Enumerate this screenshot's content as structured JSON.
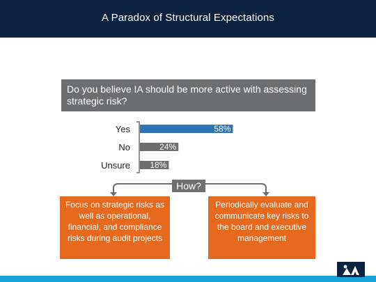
{
  "slide": {
    "title": "A Paradox of Structural Expectations"
  },
  "question": "Do you believe IA should be more active with assessing strategic risk?",
  "how_label": "How?",
  "answers": {
    "left": "Focus on strategic risks as well as operational, financial, and compliance risks during audit projects",
    "right": "Periodically evaluate and communicate key risks to the board and executive management"
  },
  "colors": {
    "title_bar": "#0d2240",
    "question_box": "#6d6e70",
    "bar_highlight": "#2e75b6",
    "bar_default": "#6d6e70",
    "answer_box": "#e5691f",
    "footer_bar": "#1aa3d9"
  },
  "logo_icon": "iia-logo-icon",
  "chart_data": {
    "type": "bar",
    "orientation": "horizontal",
    "categories": [
      "Yes",
      "No",
      "Unsure"
    ],
    "values": [
      58,
      24,
      18
    ],
    "value_labels": [
      "58%",
      "24%",
      "18%"
    ],
    "unit": "%",
    "xlim": [
      0,
      100
    ],
    "grid": false,
    "legend": "none"
  }
}
